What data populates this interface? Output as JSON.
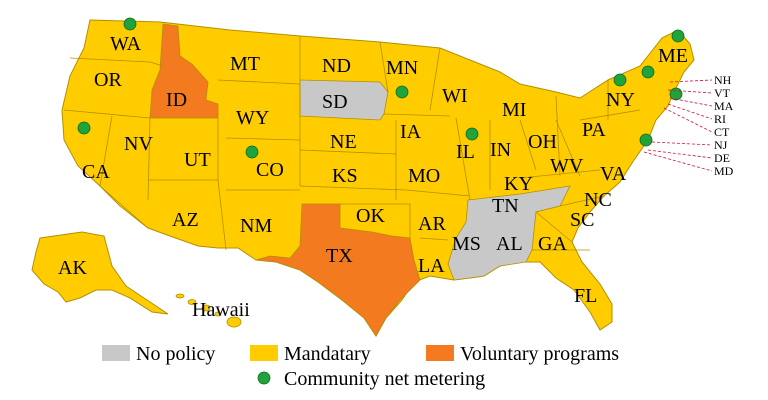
{
  "colors": {
    "mandatary": "#FFCC00",
    "voluntary": "#F47A20",
    "no_policy": "#C8C8C8",
    "community": "#1FA33A",
    "callout_line": "#D0103A"
  },
  "states": [
    {
      "code": "WA",
      "category": "mandatary",
      "community": true
    },
    {
      "code": "OR",
      "category": "mandatary",
      "community": false
    },
    {
      "code": "CA",
      "category": "mandatary",
      "community": true
    },
    {
      "code": "NV",
      "category": "mandatary",
      "community": false
    },
    {
      "code": "ID",
      "category": "voluntary",
      "community": false
    },
    {
      "code": "MT",
      "category": "mandatary",
      "community": false
    },
    {
      "code": "WY",
      "category": "mandatary",
      "community": false
    },
    {
      "code": "UT",
      "category": "mandatary",
      "community": false
    },
    {
      "code": "CO",
      "category": "mandatary",
      "community": true
    },
    {
      "code": "AZ",
      "category": "mandatary",
      "community": false
    },
    {
      "code": "NM",
      "category": "mandatary",
      "community": false
    },
    {
      "code": "ND",
      "category": "mandatary",
      "community": false
    },
    {
      "code": "SD",
      "category": "no_policy",
      "community": false
    },
    {
      "code": "NE",
      "category": "mandatary",
      "community": false
    },
    {
      "code": "KS",
      "category": "mandatary",
      "community": false
    },
    {
      "code": "OK",
      "category": "mandatary",
      "community": false
    },
    {
      "code": "TX",
      "category": "voluntary",
      "community": false
    },
    {
      "code": "MN",
      "category": "mandatary",
      "community": true
    },
    {
      "code": "IA",
      "category": "mandatary",
      "community": false
    },
    {
      "code": "MO",
      "category": "mandatary",
      "community": false
    },
    {
      "code": "AR",
      "category": "mandatary",
      "community": false
    },
    {
      "code": "LA",
      "category": "mandatary",
      "community": false
    },
    {
      "code": "WI",
      "category": "mandatary",
      "community": false
    },
    {
      "code": "IL",
      "category": "mandatary",
      "community": true
    },
    {
      "code": "MI",
      "category": "mandatary",
      "community": false
    },
    {
      "code": "IN",
      "category": "mandatary",
      "community": false
    },
    {
      "code": "OH",
      "category": "mandatary",
      "community": false
    },
    {
      "code": "KY",
      "category": "mandatary",
      "community": false
    },
    {
      "code": "TN",
      "category": "no_policy",
      "community": false
    },
    {
      "code": "MS",
      "category": "no_policy",
      "community": false
    },
    {
      "code": "AL",
      "category": "no_policy",
      "community": false
    },
    {
      "code": "GA",
      "category": "mandatary",
      "community": false
    },
    {
      "code": "FL",
      "category": "mandatary",
      "community": false
    },
    {
      "code": "SC",
      "category": "mandatary",
      "community": false
    },
    {
      "code": "NC",
      "category": "mandatary",
      "community": false
    },
    {
      "code": "VA",
      "category": "mandatary",
      "community": false
    },
    {
      "code": "WV",
      "category": "mandatary",
      "community": false
    },
    {
      "code": "PA",
      "category": "mandatary",
      "community": false
    },
    {
      "code": "NY",
      "category": "mandatary",
      "community": true
    },
    {
      "code": "ME",
      "category": "mandatary",
      "community": true
    },
    {
      "code": "AK",
      "category": "mandatary",
      "community": false
    },
    {
      "code": "Hawaii",
      "category": "mandatary",
      "community": false
    }
  ],
  "callout_states": [
    {
      "code": "NH",
      "category": "mandatary",
      "community": true
    },
    {
      "code": "VT",
      "category": "mandatary",
      "community": true
    },
    {
      "code": "MA",
      "category": "mandatary",
      "community": true
    },
    {
      "code": "RI",
      "category": "mandatary",
      "community": false
    },
    {
      "code": "CT",
      "category": "mandatary",
      "community": false
    },
    {
      "code": "NJ",
      "category": "mandatary",
      "community": true
    },
    {
      "code": "DE",
      "category": "mandatary",
      "community": false
    },
    {
      "code": "MD",
      "category": "mandatary",
      "community": true
    }
  ],
  "legend": {
    "no_policy": "No policy",
    "mandatary": "Mandatary",
    "voluntary": "Voluntary programs",
    "community": "Community net metering"
  }
}
